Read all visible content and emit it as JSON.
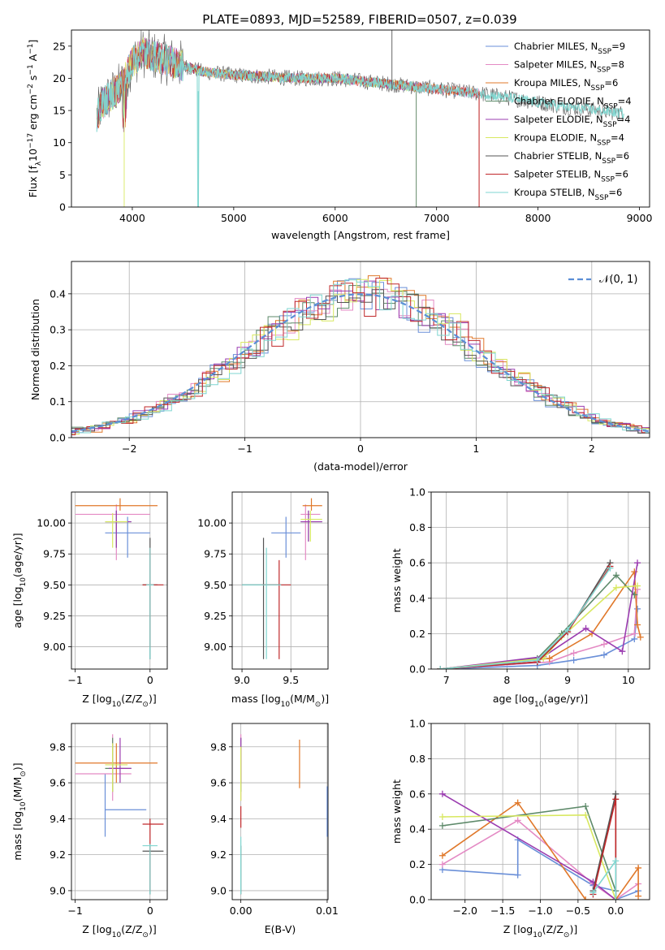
{
  "figure_title": "PLATE=0893, MJD=52589, FIBERID=0507, z=0.039",
  "colors": {
    "Chabrier MILES": "#6a8fd8",
    "Salpeter MILES": "#e48ac4",
    "Kroupa MILES": "#e0782a",
    "Chabrier ELODIE": "#5e8a6a",
    "Salpeter ELODIE": "#9b3cb0",
    "Kroupa ELODIE": "#d8e860",
    "Chabrier STELIB": "#555555",
    "Salpeter STELIB": "#c0282a",
    "Kroupa STELIB": "#7fd6d0",
    "gaussian": "#5b8ed6"
  },
  "chart_data": [
    {
      "id": "spectrum",
      "type": "line",
      "xlabel": "wavelength [Angstrom, rest frame]",
      "ylabel": "Flux [f",
      "ylabel_sub": "λ",
      "ylabel_rest": "10",
      "ylabel_exp": "−17",
      "ylabel_tail": " erg cm",
      "ylabel_exp2": "−2",
      "ylabel_tail2": " s",
      "ylabel_exp3": "−1",
      "ylabel_tail3": " A",
      "ylabel_exp4": "−1",
      "ylabel_close": "]",
      "xlim": [
        3400,
        9100
      ],
      "ylim": [
        0,
        27.5
      ],
      "xticks": [
        4000,
        5000,
        6000,
        7000,
        8000,
        9000
      ],
      "yticks": [
        0,
        5,
        10,
        15,
        20,
        25
      ],
      "legend": [
        {
          "name": "Chabrier MILES",
          "n": "9"
        },
        {
          "name": "Salpeter MILES",
          "n": "8"
        },
        {
          "name": "Kroupa MILES",
          "n": "6"
        },
        {
          "name": "Chabrier ELODIE",
          "n": "4"
        },
        {
          "name": "Salpeter ELODIE",
          "n": "4"
        },
        {
          "name": "Kroupa ELODIE",
          "n": "4"
        },
        {
          "name": "Chabrier STELIB",
          "n": "6"
        },
        {
          "name": "Salpeter STELIB",
          "n": "6"
        },
        {
          "name": "Kroupa STELIB",
          "n": "6"
        }
      ],
      "legend_sub": "SSP",
      "envelope": {
        "x": [
          3650,
          3700,
          3800,
          3900,
          4000,
          4100,
          4300,
          4500,
          4700,
          5000,
          5300,
          5600,
          6000,
          6300,
          6600,
          6900,
          7200,
          7500,
          7700,
          7900,
          8100,
          8300,
          8500,
          8700,
          8850
        ],
        "y": [
          14,
          16,
          17.5,
          19,
          22.5,
          24,
          23,
          22,
          21,
          20.5,
          20.3,
          20,
          20,
          19.5,
          19,
          18.5,
          18,
          17.5,
          17,
          16.5,
          16,
          15.5,
          15.2,
          14.8,
          14.5
        ]
      },
      "series_ranges": [
        [
          3650,
          7420
        ],
        [
          3650,
          7420
        ],
        [
          3650,
          7420
        ],
        [
          3650,
          6800
        ],
        [
          3650,
          6800
        ],
        [
          3650,
          6800
        ],
        [
          3650,
          8850
        ],
        [
          3650,
          7420
        ],
        [
          3650,
          8850
        ]
      ]
    },
    {
      "id": "residuals",
      "type": "bar",
      "xlabel": "(data-model)/error",
      "ylabel": "Normed distribution",
      "xlim": [
        -2.5,
        2.5
      ],
      "ylim": [
        0,
        0.49
      ],
      "xticks": [
        -2,
        -1,
        0,
        1,
        2
      ],
      "yticks": [
        0.0,
        0.1,
        0.2,
        0.3,
        0.4
      ],
      "legend": "𝒩(0, 1)"
    },
    {
      "id": "age-vs-Z",
      "type": "scatter",
      "xlabel": "Z [log",
      "xlabel_sub": "10",
      "xlabel_rest": "(Z/Z",
      "xlabel_sub2": "⊙",
      "xlabel_close": ")]",
      "ylabel": "age  [log",
      "ylabel_sub": "10",
      "ylabel_rest": "(age/yr)]",
      "xlim": [
        -1.05,
        0.23
      ],
      "ylim": [
        8.82,
        10.25
      ],
      "xticks": [
        -1,
        0
      ],
      "yticks": [
        9.0,
        9.25,
        9.5,
        9.75,
        10.0
      ],
      "points": [
        {
          "s": 0,
          "x": -0.3,
          "y": 9.92,
          "xe": [
            -0.6,
            0.0
          ],
          "ye": [
            9.72,
            10.05
          ]
        },
        {
          "s": 1,
          "x": -0.45,
          "y": 10.07,
          "xe": [
            -1.0,
            0.0
          ],
          "ye": [
            9.7,
            10.15
          ]
        },
        {
          "s": 2,
          "x": -0.4,
          "y": 10.14,
          "xe": [
            -1.0,
            0.1
          ],
          "ye": [
            10.1,
            10.2
          ]
        },
        {
          "s": 3,
          "x": -0.45,
          "y": 10.01,
          "xe": [
            -0.6,
            -0.25
          ],
          "ye": [
            9.8,
            10.1
          ]
        },
        {
          "s": 4,
          "x": -0.45,
          "y": 10.01,
          "xe": [
            -0.6,
            -0.25
          ],
          "ye": [
            9.8,
            10.1
          ]
        },
        {
          "s": 5,
          "x": -0.5,
          "y": 10.01,
          "xe": [
            -0.6,
            -0.3
          ],
          "ye": [
            9.8,
            10.08
          ]
        },
        {
          "s": 6,
          "x": 0.0,
          "y": 9.5,
          "xe": [
            -0.1,
            0.1
          ],
          "ye": [
            8.9,
            9.88
          ]
        },
        {
          "s": 7,
          "x": 0.0,
          "y": 9.5,
          "xe": [
            -0.1,
            0.18
          ],
          "ye": [
            9.0,
            9.8
          ]
        },
        {
          "s": 8,
          "x": 0.0,
          "y": 9.5,
          "xe": [
            -0.05,
            0.05
          ],
          "ye": [
            8.9,
            9.8
          ]
        }
      ]
    },
    {
      "id": "age-vs-mass",
      "type": "scatter",
      "xlabel": "mass [log",
      "xlabel_sub": "10",
      "xlabel_rest": "(M/M",
      "xlabel_sub2": "⊙",
      "xlabel_close": ")]",
      "ylabel": "",
      "xlim": [
        8.9,
        9.88
      ],
      "ylim": [
        8.82,
        10.25
      ],
      "xticks": [
        9.0,
        9.5
      ],
      "yticks": [
        9.0,
        9.25,
        9.5,
        9.75,
        10.0
      ],
      "points": [
        {
          "s": 0,
          "x": 9.45,
          "y": 9.92,
          "xe": [
            9.3,
            9.6
          ],
          "ye": [
            9.72,
            10.05
          ]
        },
        {
          "s": 1,
          "x": 9.65,
          "y": 10.07,
          "xe": [
            9.6,
            9.8
          ],
          "ye": [
            9.7,
            10.15
          ]
        },
        {
          "s": 2,
          "x": 9.71,
          "y": 10.14,
          "xe": [
            9.62,
            9.82
          ],
          "ye": [
            10.1,
            10.2
          ]
        },
        {
          "s": 3,
          "x": 9.68,
          "y": 10.01,
          "xe": [
            9.6,
            9.82
          ],
          "ye": [
            9.85,
            10.1
          ]
        },
        {
          "s": 4,
          "x": 9.68,
          "y": 10.01,
          "xe": [
            9.6,
            9.82
          ],
          "ye": [
            9.85,
            10.1
          ]
        },
        {
          "s": 5,
          "x": 9.7,
          "y": 10.03,
          "xe": [
            9.6,
            9.82
          ],
          "ye": [
            9.85,
            10.1
          ]
        },
        {
          "s": 6,
          "x": 9.22,
          "y": 9.5,
          "xe": [
            9.0,
            9.4
          ],
          "ye": [
            8.9,
            9.88
          ]
        },
        {
          "s": 7,
          "x": 9.38,
          "y": 9.5,
          "xe": [
            9.2,
            9.5
          ],
          "ye": [
            8.9,
            9.7
          ]
        },
        {
          "s": 8,
          "x": 9.25,
          "y": 9.5,
          "xe": [
            9.0,
            9.4
          ],
          "ye": [
            8.9,
            9.8
          ]
        }
      ]
    },
    {
      "id": "weight-vs-age",
      "type": "line",
      "xlabel": "age  [log",
      "xlabel_sub": "10",
      "xlabel_rest": "(age/yr)]",
      "ylabel": "mass weight",
      "xlim": [
        6.75,
        10.35
      ],
      "ylim": [
        0,
        1.0
      ],
      "xticks": [
        7,
        8,
        9,
        10
      ],
      "yticks": [
        0.0,
        0.2,
        0.4,
        0.6,
        0.8,
        1.0
      ],
      "series": [
        {
          "s": 0,
          "x": [
            6.9,
            8.5,
            9.1,
            9.6,
            10.1,
            10.15
          ],
          "y": [
            0.0,
            0.02,
            0.05,
            0.08,
            0.17,
            0.34
          ]
        },
        {
          "s": 1,
          "x": [
            6.9,
            8.7,
            9.1,
            9.6,
            10.1,
            10.15
          ],
          "y": [
            0.0,
            0.04,
            0.09,
            0.14,
            0.2,
            0.45
          ]
        },
        {
          "s": 2,
          "x": [
            6.9,
            8.7,
            9.4,
            10.1,
            10.15,
            10.2
          ],
          "y": [
            0.0,
            0.06,
            0.2,
            0.55,
            0.25,
            0.18
          ]
        },
        {
          "s": 3,
          "x": [
            6.9,
            8.5,
            8.9,
            9.8,
            10.1
          ],
          "y": [
            0.0,
            0.06,
            0.2,
            0.53,
            0.42
          ]
        },
        {
          "s": 4,
          "x": [
            6.9,
            8.6,
            9.3,
            9.9,
            10.15
          ],
          "y": [
            0.0,
            0.07,
            0.23,
            0.1,
            0.6
          ]
        },
        {
          "s": 5,
          "x": [
            6.9,
            8.6,
            8.9,
            9.8,
            10.15
          ],
          "y": [
            0.0,
            0.06,
            0.18,
            0.46,
            0.47
          ]
        },
        {
          "s": 6,
          "x": [
            6.9,
            8.5,
            9.0,
            9.7
          ],
          "y": [
            0.0,
            0.04,
            0.21,
            0.6
          ]
        },
        {
          "s": 7,
          "x": [
            6.9,
            8.5,
            9.0,
            9.7
          ],
          "y": [
            0.0,
            0.04,
            0.21,
            0.58
          ]
        },
        {
          "s": 8,
          "x": [
            6.9,
            8.5,
            9.0,
            9.7
          ],
          "y": [
            0.0,
            0.05,
            0.22,
            0.57
          ]
        }
      ]
    },
    {
      "id": "mass-vs-Z",
      "type": "scatter",
      "xlabel": "Z [log",
      "xlabel_sub": "10",
      "xlabel_rest": "(Z/Z",
      "xlabel_sub2": "⊙",
      "xlabel_close": ")]",
      "ylabel": "mass [log",
      "ylabel_sub": "10",
      "ylabel_rest": "(M/M",
      "ylabel_sub2": "⊙",
      "ylabel_close": ")]",
      "xlim": [
        -1.05,
        0.23
      ],
      "ylim": [
        8.95,
        9.93
      ],
      "xticks": [
        -1,
        0
      ],
      "yticks": [
        9.0,
        9.2,
        9.4,
        9.6,
        9.8
      ],
      "points": [
        {
          "s": 0,
          "x": -0.6,
          "y": 9.45,
          "xe": [
            -0.6,
            -0.05
          ],
          "ye": [
            9.3,
            9.65
          ]
        },
        {
          "s": 1,
          "x": -0.5,
          "y": 9.65,
          "xe": [
            -1.0,
            -0.25
          ],
          "ye": [
            9.5,
            9.87
          ]
        },
        {
          "s": 2,
          "x": -0.45,
          "y": 9.71,
          "xe": [
            -1.0,
            0.1
          ],
          "ye": [
            9.6,
            9.82
          ]
        },
        {
          "s": 3,
          "x": -0.5,
          "y": 9.68,
          "xe": [
            -0.6,
            -0.25
          ],
          "ye": [
            9.55,
            9.85
          ]
        },
        {
          "s": 4,
          "x": -0.4,
          "y": 9.68,
          "xe": [
            -0.55,
            -0.25
          ],
          "ye": [
            9.6,
            9.85
          ]
        },
        {
          "s": 5,
          "x": -0.5,
          "y": 9.7,
          "xe": [
            -0.6,
            -0.3
          ],
          "ye": [
            9.55,
            9.82
          ]
        },
        {
          "s": 6,
          "x": 0.0,
          "y": 9.22,
          "xe": [
            -0.1,
            0.18
          ],
          "ye": [
            8.98,
            9.26
          ]
        },
        {
          "s": 7,
          "x": 0.0,
          "y": 9.37,
          "xe": [
            -0.1,
            0.18
          ],
          "ye": [
            9.0,
            9.4
          ]
        },
        {
          "s": 8,
          "x": 0.0,
          "y": 9.25,
          "xe": [
            -0.1,
            0.1
          ],
          "ye": [
            8.98,
            9.26
          ]
        }
      ]
    },
    {
      "id": "mass-vs-EBV",
      "type": "scatter",
      "xlabel": "E(B-V)",
      "ylabel": "",
      "xlim": [
        -0.001,
        0.0101
      ],
      "ylim": [
        8.95,
        9.93
      ],
      "xticks": [
        0.0,
        0.01
      ],
      "xtick_labels": [
        "0.00",
        "0.01"
      ],
      "yticks": [
        9.0,
        9.2,
        9.4,
        9.6,
        9.8
      ],
      "points": [
        {
          "s": 0,
          "x": 0.01,
          "y": 9.45,
          "ye": [
            9.3,
            9.58
          ]
        },
        {
          "s": 1,
          "x": 0.0,
          "y": 9.65,
          "ye": [
            9.5,
            9.87
          ]
        },
        {
          "s": 2,
          "x": 0.0068,
          "y": 9.71,
          "ye": [
            9.57,
            9.84
          ]
        },
        {
          "s": 3,
          "x": 0.0,
          "y": 9.68,
          "ye": [
            9.55,
            9.85
          ]
        },
        {
          "s": 4,
          "x": 0.0,
          "y": 9.7,
          "ye": [
            9.6,
            9.85
          ]
        },
        {
          "s": 5,
          "x": 0.0,
          "y": 9.68,
          "ye": [
            9.5,
            9.8
          ]
        },
        {
          "s": 6,
          "x": 0.0,
          "y": 9.22,
          "ye": [
            8.98,
            9.25
          ]
        },
        {
          "s": 7,
          "x": 0.0,
          "y": 9.37,
          "ye": [
            9.35,
            9.47
          ]
        },
        {
          "s": 8,
          "x": 0.0,
          "y": 9.25,
          "ye": [
            8.98,
            9.3
          ]
        }
      ]
    },
    {
      "id": "weight-vs-Z",
      "type": "line",
      "xlabel": "Z [log",
      "xlabel_sub": "10",
      "xlabel_rest": "(Z/Z",
      "xlabel_sub2": "⊙",
      "xlabel_close": ")]",
      "ylabel": "mass weight",
      "xlim": [
        -2.45,
        0.45
      ],
      "ylim": [
        0,
        1.0
      ],
      "xticks": [
        -2.0,
        -1.5,
        -1.0,
        -0.5,
        0.0
      ],
      "xtick_labels": [
        "−2.0",
        "−1.5",
        "−1.0",
        "−0.5",
        "0.0"
      ],
      "yticks": [
        0.0,
        0.2,
        0.4,
        0.6,
        0.8,
        1.0
      ],
      "series": [
        {
          "s": 0,
          "x": [
            -2.3,
            -1.3,
            -1.3,
            -0.3,
            0.0,
            0.0,
            0.3
          ],
          "y": [
            0.17,
            0.14,
            0.34,
            0.08,
            0.05,
            0.0,
            0.05
          ]
        },
        {
          "s": 1,
          "x": [
            -2.3,
            -1.3,
            -0.3,
            0.0,
            0.3
          ],
          "y": [
            0.2,
            0.45,
            0.09,
            0.0,
            0.09
          ]
        },
        {
          "s": 2,
          "x": [
            -2.3,
            -1.3,
            -0.4,
            0.0,
            0.3,
            0.3
          ],
          "y": [
            0.25,
            0.55,
            0.0,
            0.0,
            0.18,
            0.02
          ]
        },
        {
          "s": 3,
          "x": [
            -2.3,
            -0.4,
            0.0,
            0.0
          ],
          "y": [
            0.42,
            0.53,
            0.05,
            0.0
          ]
        },
        {
          "s": 4,
          "x": [
            -2.3,
            -0.3,
            0.0
          ],
          "y": [
            0.6,
            0.1,
            0.0
          ]
        },
        {
          "s": 5,
          "x": [
            -2.3,
            -0.4,
            0.0
          ],
          "y": [
            0.47,
            0.48,
            0.0
          ]
        },
        {
          "s": 6,
          "x": [
            -0.3,
            0.0,
            0.0
          ],
          "y": [
            0.05,
            0.6,
            0.0
          ]
        },
        {
          "s": 7,
          "x": [
            -0.3,
            0.0,
            0.0
          ],
          "y": [
            0.03,
            0.57,
            0.0
          ]
        },
        {
          "s": 8,
          "x": [
            -0.3,
            0.0,
            0.0
          ],
          "y": [
            0.04,
            0.22,
            0.0
          ]
        }
      ]
    }
  ]
}
